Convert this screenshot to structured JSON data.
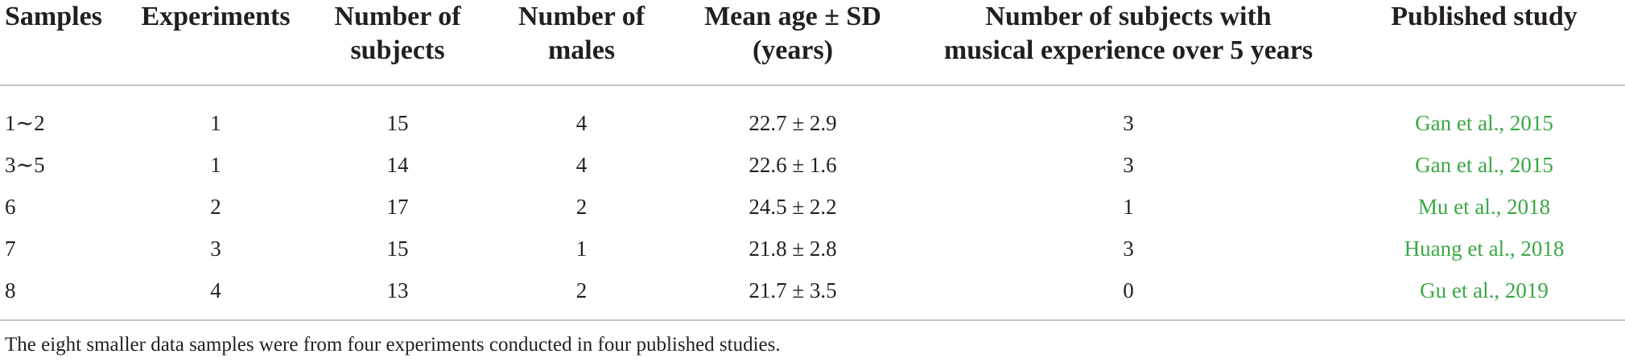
{
  "headers": [
    "Samples",
    "Experiments",
    "Number of\nsubjects",
    "Number of\nmales",
    "Mean age ± SD\n(years)",
    "Number of subjects with\nmusical experience over 5 years",
    "Published study"
  ],
  "rows": [
    {
      "samples": "1∼2",
      "experiments": "1",
      "subjects": "15",
      "males": "4",
      "age": "22.7 ± 2.9",
      "musical": "3",
      "study_authors": "Gan et al.,",
      "study_year": "2015"
    },
    {
      "samples": "3∼5",
      "experiments": "1",
      "subjects": "14",
      "males": "4",
      "age": "22.6 ± 1.6",
      "musical": "3",
      "study_authors": "Gan et al.,",
      "study_year": "2015"
    },
    {
      "samples": "6",
      "experiments": "2",
      "subjects": "17",
      "males": "2",
      "age": "24.5 ± 2.2",
      "musical": "1",
      "study_authors": "Mu et al.,",
      "study_year": "2018"
    },
    {
      "samples": "7",
      "experiments": "3",
      "subjects": "15",
      "males": "1",
      "age": "21.8 ± 2.8",
      "musical": "3",
      "study_authors": "Huang et al.,",
      "study_year": "2018"
    },
    {
      "samples": "8",
      "experiments": "4",
      "subjects": "13",
      "males": "2",
      "age": "21.7 ± 3.5",
      "musical": "0",
      "study_authors": "Gu et al.,",
      "study_year": "2019"
    }
  ],
  "footnote": "The eight smaller data samples were from four experiments conducted in four published studies.",
  "colors": {
    "link": "#3aa845",
    "text": "#231f20",
    "rule": "#c8c8c8"
  }
}
